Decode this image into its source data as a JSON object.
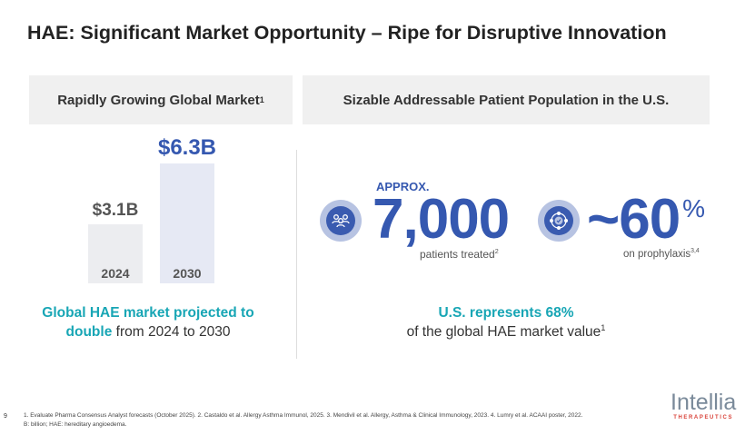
{
  "title": "HAE: Significant Market Opportunity – Ripe for Disruptive Innovation",
  "left": {
    "header": "Rapidly Growing Global Market",
    "header_sup": "1",
    "chart_data": {
      "type": "bar",
      "categories": [
        "2024",
        "2030"
      ],
      "values": [
        3.1,
        6.3
      ],
      "labels": [
        "$3.1B",
        "$6.3B"
      ],
      "unit": "$B"
    },
    "caption_bold1": "Global HAE market projected to",
    "caption_bold2": "double",
    "caption_rest": " from 2024 to 2030"
  },
  "right": {
    "header": "Sizable Addressable Patient Population in the U.S.",
    "stat1": {
      "pre": "APPROX.",
      "value": "7,000",
      "label": "patients treated",
      "sup": "2",
      "icon": "people-group-icon"
    },
    "stat2": {
      "value": "~60",
      "unit": "%",
      "label": "on prophylaxis",
      "sup": "3,4",
      "icon": "cycle-check-icon"
    },
    "summary_bold": "U.S. represents 68%",
    "summary_rest": "of the global HAE market value",
    "summary_sup": "1"
  },
  "footer": {
    "page": "9",
    "note1": "1. Evaluate Pharma Consensus Analyst forecasts (October 2025). 2. Castaldo et al. Allergy Asthma Immunol, 2025. 3. Mendivil et al. Allergy, Asthma & Clinical Immunology, 2023. 4. Lumry et al. ACAAI poster, 2022.",
    "note2": "B: billion; HAE: hereditary angioedema.",
    "logo_main": "Intellia",
    "logo_sub": "THERAPEUTICS"
  },
  "colors": {
    "blue": "#3558b0",
    "teal": "#18a6b5"
  }
}
